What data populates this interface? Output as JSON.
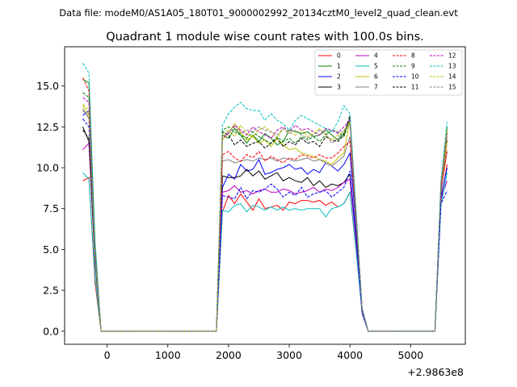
{
  "figure": {
    "suptitle": "Data file: modeM0/AS1A05_180T01_9000002992_20134cztM0_level2_quad_clean.evt",
    "title": "Quadrant 1 module wise count rates with 100.0s bins."
  },
  "chart_data": {
    "type": "line",
    "title": "Quadrant 1 module wise count rates with 100.0s bins.",
    "xlabel": "",
    "ylabel": "",
    "x_offset_label": "+2.9863e8",
    "xlim": [
      -700,
      5900
    ],
    "ylim": [
      -0.8,
      17.4
    ],
    "xticks": [
      0,
      1000,
      2000,
      3000,
      4000,
      5000
    ],
    "xtick_labels": [
      "0",
      "1000",
      "2000",
      "3000",
      "4000",
      "5000"
    ],
    "yticks": [
      0.0,
      2.5,
      5.0,
      7.5,
      10.0,
      12.5,
      15.0
    ],
    "ytick_labels": [
      "0.0",
      "2.5",
      "5.0",
      "7.5",
      "10.0",
      "12.5",
      "15.0"
    ],
    "grid": false,
    "legend": {
      "placement": "top-right",
      "ncol": 4
    },
    "x": [
      -400,
      -300,
      -200,
      -100,
      0,
      100,
      200,
      300,
      400,
      500,
      600,
      700,
      800,
      900,
      1000,
      1100,
      1200,
      1300,
      1400,
      1500,
      1600,
      1700,
      1800,
      1900,
      2000,
      2100,
      2200,
      2300,
      2400,
      2500,
      2600,
      2700,
      2800,
      2900,
      3000,
      3100,
      3200,
      3300,
      3400,
      3500,
      3600,
      3700,
      3800,
      3900,
      4000,
      4100,
      4200,
      4300,
      4400,
      4500,
      4600,
      4700,
      4800,
      4900,
      5000,
      5100,
      5200,
      5300,
      5400,
      5500,
      5600
    ],
    "series": [
      {
        "name": "0",
        "color": "#ff0000",
        "dash": "solid",
        "values": [
          9.2,
          9.4,
          3.0,
          0,
          0,
          0,
          0,
          0,
          0,
          0,
          0,
          0,
          0,
          0,
          0,
          0,
          0,
          0,
          0,
          0,
          0,
          0,
          0,
          7.3,
          8.3,
          7.8,
          8.4,
          7.9,
          7.4,
          8.1,
          7.5,
          7.6,
          7.7,
          7.4,
          7.9,
          7.8,
          8.0,
          8.0,
          7.9,
          8.0,
          7.7,
          7.9,
          7.6,
          7.8,
          8.5,
          5.0,
          1.2,
          0,
          0,
          0,
          0,
          0,
          0,
          0,
          0,
          0,
          0,
          0,
          0,
          8.0,
          10.2
        ]
      },
      {
        "name": "1",
        "color": "#008000",
        "dash": "solid",
        "values": [
          15.4,
          15.2,
          5.4,
          0,
          0,
          0,
          0,
          0,
          0,
          0,
          0,
          0,
          0,
          0,
          0,
          0,
          0,
          0,
          0,
          0,
          0,
          0,
          0,
          12.0,
          11.8,
          12.4,
          12.0,
          11.5,
          12.0,
          11.6,
          12.1,
          11.8,
          11.4,
          11.6,
          12.3,
          12.2,
          12.1,
          12.2,
          11.9,
          12.0,
          12.3,
          12.0,
          11.7,
          12.1,
          13.0,
          7.3,
          1.4,
          0,
          0,
          0,
          0,
          0,
          0,
          0,
          0,
          0,
          0,
          0,
          0,
          9.0,
          12.5
        ]
      },
      {
        "name": "2",
        "color": "#0000ff",
        "dash": "solid",
        "values": [
          13.2,
          13.5,
          4.8,
          0,
          0,
          0,
          0,
          0,
          0,
          0,
          0,
          0,
          0,
          0,
          0,
          0,
          0,
          0,
          0,
          0,
          0,
          0,
          0,
          8.8,
          9.6,
          9.3,
          10.2,
          9.8,
          9.9,
          10.5,
          9.6,
          9.7,
          9.9,
          10.0,
          10.2,
          9.9,
          10.0,
          9.6,
          9.9,
          9.7,
          10.3,
          10.1,
          9.8,
          10.2,
          10.9,
          6.4,
          1.2,
          0,
          0,
          0,
          0,
          0,
          0,
          0,
          0,
          0,
          0,
          0,
          0,
          8.2,
          10.0
        ]
      },
      {
        "name": "3",
        "color": "#000000",
        "dash": "solid",
        "values": [
          12.5,
          11.6,
          4.4,
          0,
          0,
          0,
          0,
          0,
          0,
          0,
          0,
          0,
          0,
          0,
          0,
          0,
          0,
          0,
          0,
          0,
          0,
          0,
          0,
          9.5,
          9.4,
          9.4,
          9.5,
          9.9,
          9.5,
          9.8,
          9.3,
          9.5,
          9.7,
          9.2,
          9.4,
          9.2,
          9.1,
          9.4,
          8.9,
          9.2,
          8.8,
          9.0,
          8.9,
          9.1,
          9.6,
          5.8,
          1.2,
          0,
          0,
          0,
          0,
          0,
          0,
          0,
          0,
          0,
          0,
          0,
          0,
          8.5,
          11.7
        ]
      },
      {
        "name": "4",
        "color": "#bf00bf",
        "dash": "solid",
        "values": [
          11.1,
          11.5,
          4.2,
          0,
          0,
          0,
          0,
          0,
          0,
          0,
          0,
          0,
          0,
          0,
          0,
          0,
          0,
          0,
          0,
          0,
          0,
          0,
          0,
          8.5,
          8.6,
          8.9,
          8.5,
          8.6,
          8.4,
          8.6,
          8.7,
          8.5,
          8.5,
          8.7,
          8.6,
          8.4,
          8.5,
          8.6,
          8.8,
          8.5,
          8.7,
          8.6,
          8.8,
          9.1,
          9.3,
          5.5,
          1.1,
          0,
          0,
          0,
          0,
          0,
          0,
          0,
          0,
          0,
          0,
          0,
          0,
          8.1,
          9.2
        ]
      },
      {
        "name": "5",
        "color": "#00bfbf",
        "dash": "solid",
        "values": [
          9.7,
          9.3,
          3.3,
          0,
          0,
          0,
          0,
          0,
          0,
          0,
          0,
          0,
          0,
          0,
          0,
          0,
          0,
          0,
          0,
          0,
          0,
          0,
          0,
          7.4,
          7.3,
          7.7,
          7.8,
          7.3,
          7.7,
          7.6,
          7.4,
          7.6,
          7.4,
          7.6,
          7.4,
          7.5,
          7.4,
          7.5,
          7.5,
          7.5,
          7.0,
          7.5,
          7.6,
          7.8,
          8.5,
          5.0,
          1.2,
          0,
          0,
          0,
          0,
          0,
          0,
          0,
          0,
          0,
          0,
          0,
          0,
          7.7,
          9.7
        ]
      },
      {
        "name": "6",
        "color": "#bfbf00",
        "dash": "solid",
        "values": [
          13.8,
          13.2,
          4.6,
          0,
          0,
          0,
          0,
          0,
          0,
          0,
          0,
          0,
          0,
          0,
          0,
          0,
          0,
          0,
          0,
          0,
          0,
          0,
          0,
          11.7,
          12.1,
          12.7,
          12.2,
          11.7,
          11.9,
          11.5,
          11.7,
          11.3,
          11.8,
          11.4,
          11.1,
          11.2,
          10.9,
          10.8,
          10.7,
          10.5,
          10.4,
          10.2,
          10.6,
          10.9,
          12.9,
          7.2,
          1.3,
          0,
          0,
          0,
          0,
          0,
          0,
          0,
          0,
          0,
          0,
          0,
          0,
          8.8,
          11.6
        ]
      },
      {
        "name": "7",
        "color": "#808080",
        "dash": "solid",
        "values": [
          13.6,
          13.0,
          4.5,
          0,
          0,
          0,
          0,
          0,
          0,
          0,
          0,
          0,
          0,
          0,
          0,
          0,
          0,
          0,
          0,
          0,
          0,
          0,
          0,
          10.4,
          10.5,
          10.3,
          10.4,
          10.5,
          10.4,
          10.6,
          10.5,
          10.6,
          10.4,
          10.6,
          10.5,
          10.4,
          10.5,
          10.6,
          10.4,
          10.5,
          10.3,
          10.1,
          10.4,
          10.7,
          11.9,
          6.7,
          1.3,
          0,
          0,
          0,
          0,
          0,
          0,
          0,
          0,
          0,
          0,
          0,
          0,
          8.6,
          11.0
        ]
      },
      {
        "name": "8",
        "color": "#ff0000",
        "dash": "dashed",
        "values": [
          15.5,
          14.7,
          5.2,
          0,
          0,
          0,
          0,
          0,
          0,
          0,
          0,
          0,
          0,
          0,
          0,
          0,
          0,
          0,
          0,
          0,
          0,
          0,
          0,
          10.8,
          11.0,
          10.6,
          10.4,
          10.8,
          10.6,
          11.0,
          10.4,
          10.7,
          10.5,
          10.3,
          10.6,
          10.5,
          10.8,
          10.7,
          10.6,
          10.8,
          10.6,
          10.6,
          10.9,
          11.3,
          11.6,
          6.9,
          1.3,
          0,
          0,
          0,
          0,
          0,
          0,
          0,
          0,
          0,
          0,
          0,
          0,
          8.6,
          11.1
        ]
      },
      {
        "name": "9",
        "color": "#008000",
        "dash": "dashed",
        "values": [
          14.6,
          14.3,
          5.0,
          0,
          0,
          0,
          0,
          0,
          0,
          0,
          0,
          0,
          0,
          0,
          0,
          0,
          0,
          0,
          0,
          0,
          0,
          0,
          0,
          12.3,
          12.5,
          12.2,
          12.0,
          11.8,
          12.2,
          11.9,
          11.7,
          11.5,
          11.9,
          11.6,
          11.8,
          11.5,
          11.9,
          11.7,
          11.9,
          11.6,
          12.0,
          12.3,
          12.2,
          11.9,
          12.9,
          7.2,
          1.3,
          0,
          0,
          0,
          0,
          0,
          0,
          0,
          0,
          0,
          0,
          0,
          0,
          9.1,
          12.4
        ]
      },
      {
        "name": "10",
        "color": "#0000ff",
        "dash": "dashed",
        "values": [
          13.0,
          12.5,
          4.4,
          0,
          0,
          0,
          0,
          0,
          0,
          0,
          0,
          0,
          0,
          0,
          0,
          0,
          0,
          0,
          0,
          0,
          0,
          0,
          0,
          8.3,
          8.2,
          8.1,
          8.8,
          8.1,
          8.6,
          8.5,
          8.7,
          9.0,
          8.7,
          8.2,
          8.5,
          8.3,
          8.8,
          8.2,
          8.4,
          8.5,
          8.6,
          8.2,
          8.5,
          8.8,
          9.8,
          5.8,
          1.1,
          0,
          0,
          0,
          0,
          0,
          0,
          0,
          0,
          0,
          0,
          0,
          0,
          7.8,
          8.6
        ]
      },
      {
        "name": "11",
        "color": "#000000",
        "dash": "dashed",
        "values": [
          12.3,
          11.8,
          4.3,
          0,
          0,
          0,
          0,
          0,
          0,
          0,
          0,
          0,
          0,
          0,
          0,
          0,
          0,
          0,
          0,
          0,
          0,
          0,
          0,
          12.2,
          12.0,
          11.4,
          11.7,
          11.3,
          11.5,
          11.6,
          11.2,
          11.5,
          11.8,
          11.3,
          11.6,
          11.4,
          11.8,
          11.5,
          11.6,
          11.3,
          11.9,
          11.7,
          11.6,
          12.0,
          13.2,
          7.3,
          1.4,
          0,
          0,
          0,
          0,
          0,
          0,
          0,
          0,
          0,
          0,
          0,
          0,
          9.0,
          12.2
        ]
      },
      {
        "name": "12",
        "color": "#bf00bf",
        "dash": "dashed",
        "values": [
          14.3,
          14.0,
          4.9,
          0,
          0,
          0,
          0,
          0,
          0,
          0,
          0,
          0,
          0,
          0,
          0,
          0,
          0,
          0,
          0,
          0,
          0,
          0,
          0,
          11.8,
          12.1,
          12.6,
          12.3,
          12.0,
          12.5,
          12.2,
          12.0,
          11.8,
          12.3,
          12.5,
          12.2,
          12.6,
          12.3,
          12.4,
          12.2,
          12.0,
          12.4,
          12.3,
          12.1,
          12.5,
          12.9,
          7.3,
          1.4,
          0,
          0,
          0,
          0,
          0,
          0,
          0,
          0,
          0,
          0,
          0,
          0,
          9.1,
          12.1
        ]
      },
      {
        "name": "13",
        "color": "#00bfbf",
        "dash": "dashed",
        "values": [
          16.4,
          15.8,
          5.6,
          0,
          0,
          0,
          0,
          0,
          0,
          0,
          0,
          0,
          0,
          0,
          0,
          0,
          0,
          0,
          0,
          0,
          0,
          0,
          0,
          12.6,
          13.3,
          13.7,
          14.0,
          13.6,
          13.5,
          13.5,
          12.9,
          13.3,
          12.9,
          12.7,
          12.3,
          12.9,
          13.2,
          13.0,
          12.8,
          12.6,
          12.4,
          12.2,
          12.8,
          13.8,
          13.3,
          7.5,
          1.4,
          0,
          0,
          0,
          0,
          0,
          0,
          0,
          0,
          0,
          0,
          0,
          0,
          9.3,
          12.8
        ]
      },
      {
        "name": "14",
        "color": "#bfbf00",
        "dash": "dashed",
        "values": [
          13.9,
          13.5,
          4.7,
          0,
          0,
          0,
          0,
          0,
          0,
          0,
          0,
          0,
          0,
          0,
          0,
          0,
          0,
          0,
          0,
          0,
          0,
          0,
          0,
          12.1,
          12.3,
          11.9,
          12.6,
          12.1,
          11.9,
          12.3,
          12.5,
          12.2,
          11.8,
          12.4,
          12.2,
          12.0,
          12.3,
          11.9,
          12.1,
          12.4,
          12.0,
          11.7,
          12.0,
          12.2,
          12.8,
          7.2,
          1.3,
          0,
          0,
          0,
          0,
          0,
          0,
          0,
          0,
          0,
          0,
          0,
          0,
          9.0,
          12.3
        ]
      },
      {
        "name": "15",
        "color": "#808080",
        "dash": "dashed",
        "values": [
          13.5,
          13.1,
          4.6,
          0,
          0,
          0,
          0,
          0,
          0,
          0,
          0,
          0,
          0,
          0,
          0,
          0,
          0,
          0,
          0,
          0,
          0,
          0,
          0,
          11.9,
          12.2,
          12.5,
          12.1,
          12.3,
          12.2,
          12.5,
          12.3,
          12.2,
          12.0,
          12.4,
          12.1,
          12.3,
          12.0,
          11.8,
          12.0,
          12.3,
          12.1,
          11.5,
          11.8,
          12.3,
          12.7,
          7.1,
          1.3,
          0,
          0,
          0,
          0,
          0,
          0,
          0,
          0,
          0,
          0,
          0,
          0,
          8.9,
          11.9
        ]
      }
    ]
  }
}
